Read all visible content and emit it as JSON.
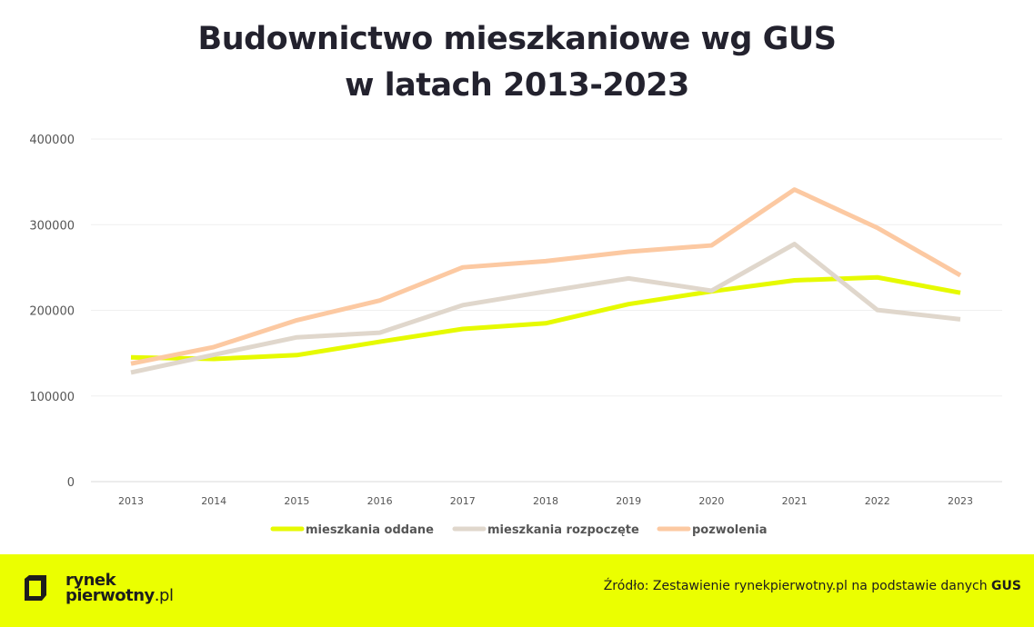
{
  "chart_data": {
    "type": "line",
    "title": [
      "Budownictwo mieszkaniowe wg GUS",
      "w latach 2013-2023"
    ],
    "x": [
      "2013",
      "2014",
      "2015",
      "2016",
      "2017",
      "2018",
      "2019",
      "2020",
      "2021",
      "2022",
      "2023"
    ],
    "ylim": [
      0,
      400000
    ],
    "yticks": [
      "0",
      "100000",
      "200000",
      "300000",
      "400000"
    ],
    "grid": true,
    "legend_position": "bottom",
    "series": [
      {
        "name": "mieszkania oddane",
        "color": "#e6fa00",
        "values": [
          145136,
          143235,
          147711,
          163325,
          178258,
          184843,
          207224,
          222111,
          235003,
          238478,
          220448
        ]
      },
      {
        "name": "mieszkania rozpoczęte",
        "color": "#e0d7cc",
        "values": [
          127392,
          148122,
          168493,
          173919,
          206025,
          221950,
          237282,
          222900,
          277368,
          200352,
          189571
        ]
      },
      {
        "name": "pozwolenia",
        "color": "#fcc9a2",
        "values": [
          137700,
          157100,
          188400,
          211500,
          250200,
          257400,
          268400,
          275800,
          341000,
          296300,
          240900
        ]
      }
    ]
  },
  "footer": {
    "logo_line1": "rynek",
    "logo_line2": "pierwotny",
    "logo_suffix": ".pl",
    "source_prefix": "Źródło: Zestawienie rynekpierwotny.pl na podstawie danych",
    "source_bold": "GUS",
    "background": "#ebff00"
  }
}
